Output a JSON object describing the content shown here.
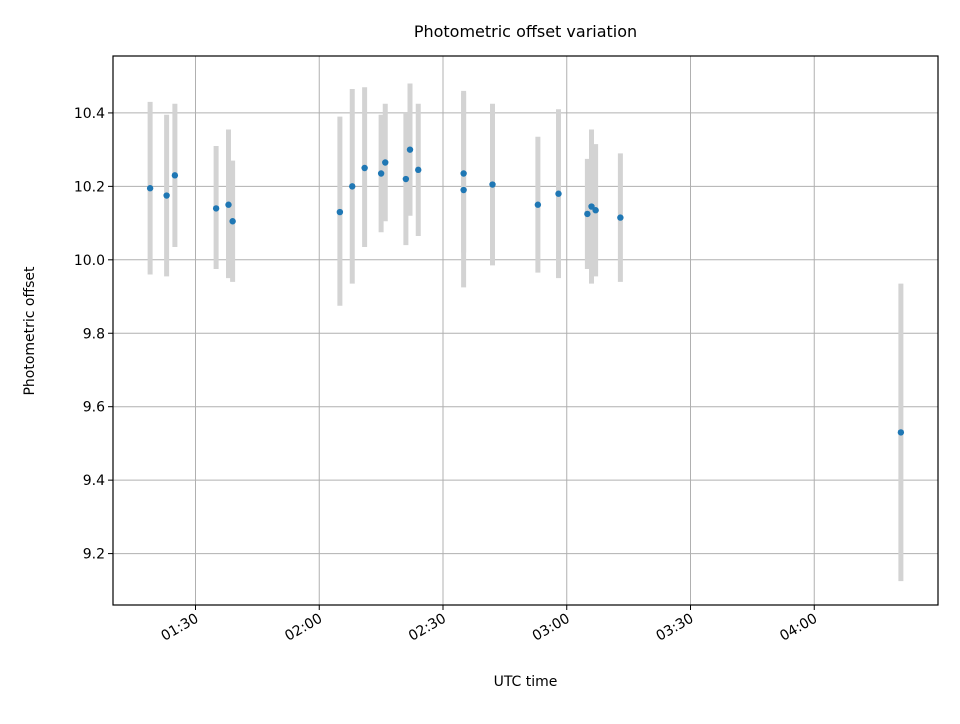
{
  "chart_data": {
    "type": "scatter",
    "title": "Photometric offset variation",
    "xlabel": "UTC time",
    "ylabel": "Photometric offset",
    "x_ticks": [
      "01:30",
      "02:00",
      "02:30",
      "03:00",
      "03:30",
      "04:00"
    ],
    "y_ticks": [
      "9.2",
      "9.4",
      "9.6",
      "9.8",
      "10.0",
      "10.2",
      "10.4"
    ],
    "xlim": [
      "01:10",
      "04:30"
    ],
    "ylim": [
      9.06,
      10.555
    ],
    "grid": true,
    "marker_color": "#1f77b4",
    "errorbar_color": "#d3d3d3",
    "series": [
      {
        "points": [
          {
            "x": "01:19",
            "y": 10.195,
            "err_low": 9.96,
            "err_high": 10.43
          },
          {
            "x": "01:23",
            "y": 10.175,
            "err_low": 9.955,
            "err_high": 10.395
          },
          {
            "x": "01:25",
            "y": 10.23,
            "err_low": 10.035,
            "err_high": 10.425
          },
          {
            "x": "01:35",
            "y": 10.14,
            "err_low": 9.975,
            "err_high": 10.31
          },
          {
            "x": "01:38",
            "y": 10.15,
            "err_low": 9.95,
            "err_high": 10.355
          },
          {
            "x": "01:39",
            "y": 10.105,
            "err_low": 9.94,
            "err_high": 10.27
          },
          {
            "x": "02:05",
            "y": 10.13,
            "err_low": 9.875,
            "err_high": 10.39
          },
          {
            "x": "02:08",
            "y": 10.2,
            "err_low": 9.935,
            "err_high": 10.465
          },
          {
            "x": "02:11",
            "y": 10.25,
            "err_low": 10.035,
            "err_high": 10.47
          },
          {
            "x": "02:15",
            "y": 10.235,
            "err_low": 10.075,
            "err_high": 10.395
          },
          {
            "x": "02:16",
            "y": 10.265,
            "err_low": 10.105,
            "err_high": 10.425
          },
          {
            "x": "02:21",
            "y": 10.22,
            "err_low": 10.04,
            "err_high": 10.4
          },
          {
            "x": "02:22",
            "y": 10.3,
            "err_low": 10.12,
            "err_high": 10.48
          },
          {
            "x": "02:24",
            "y": 10.245,
            "err_low": 10.065,
            "err_high": 10.425
          },
          {
            "x": "02:35",
            "y": 10.235,
            "err_low": 10.02,
            "err_high": 10.455
          },
          {
            "x": "02:35",
            "y": 10.19,
            "err_low": 9.925,
            "err_high": 10.46
          },
          {
            "x": "02:42",
            "y": 10.205,
            "err_low": 9.985,
            "err_high": 10.425
          },
          {
            "x": "02:53",
            "y": 10.15,
            "err_low": 9.965,
            "err_high": 10.335
          },
          {
            "x": "02:58",
            "y": 10.18,
            "err_low": 9.95,
            "err_high": 10.41
          },
          {
            "x": "03:05",
            "y": 10.125,
            "err_low": 9.975,
            "err_high": 10.275
          },
          {
            "x": "03:06",
            "y": 10.145,
            "err_low": 9.935,
            "err_high": 10.355
          },
          {
            "x": "03:07",
            "y": 10.135,
            "err_low": 9.955,
            "err_high": 10.315
          },
          {
            "x": "03:13",
            "y": 10.115,
            "err_low": 9.94,
            "err_high": 10.29
          },
          {
            "x": "04:21",
            "y": 9.53,
            "err_low": 9.125,
            "err_high": 9.935
          }
        ]
      }
    ]
  }
}
